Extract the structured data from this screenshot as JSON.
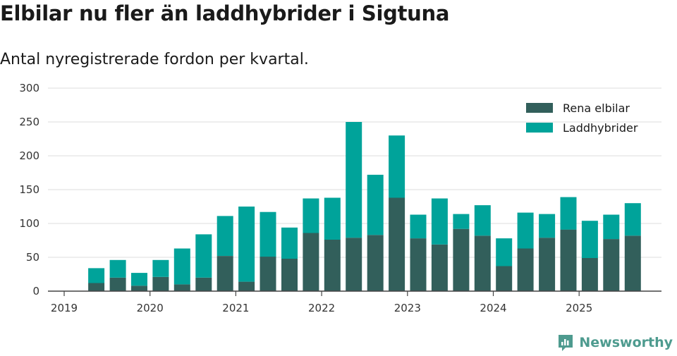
{
  "title": "Elbilar nu fler än laddhybrider i Sigtuna",
  "subtitle": "Antal nyregistrerade fordon per kvartal.",
  "brand": "Newsworthy",
  "colors": {
    "rena": "#325f5b",
    "ladd": "#00a39a",
    "grid": "#dddddd",
    "axis": "#444444",
    "brand": "#4e9b8f"
  },
  "chart_data": {
    "type": "bar",
    "stacked": true,
    "title": "Elbilar nu fler än laddhybrider i Sigtuna",
    "subtitle": "Antal nyregistrerade fordon per kvartal.",
    "xlabel": "",
    "ylabel": "",
    "ylim": [
      0,
      300
    ],
    "yticks": [
      0,
      50,
      100,
      150,
      200,
      250,
      300
    ],
    "xticks": [
      "2019",
      "2020",
      "2021",
      "2022",
      "2023",
      "2024",
      "2025"
    ],
    "legend_position": "top-right",
    "categories": [
      "2019Q2",
      "2019Q3",
      "2019Q4",
      "2020Q1",
      "2020Q2",
      "2020Q3",
      "2020Q4",
      "2021Q1",
      "2021Q2",
      "2021Q3",
      "2021Q4",
      "2022Q1",
      "2022Q2",
      "2022Q3",
      "2022Q4",
      "2023Q1",
      "2023Q2",
      "2023Q3",
      "2023Q4",
      "2024Q1",
      "2024Q2",
      "2024Q3",
      "2024Q4",
      "2025Q1",
      "2025Q2",
      "2025Q3"
    ],
    "series": [
      {
        "name": "Rena elbilar",
        "values": [
          12,
          20,
          8,
          21,
          10,
          20,
          52,
          14,
          51,
          48,
          86,
          76,
          79,
          83,
          138,
          78,
          69,
          92,
          82,
          37,
          63,
          79,
          91,
          49,
          77,
          82
        ]
      },
      {
        "name": "Laddhybrider",
        "values": [
          22,
          26,
          19,
          25,
          53,
          64,
          59,
          111,
          66,
          46,
          51,
          62,
          171,
          89,
          92,
          35,
          68,
          22,
          45,
          41,
          53,
          35,
          48,
          55,
          36,
          48
        ]
      }
    ]
  }
}
